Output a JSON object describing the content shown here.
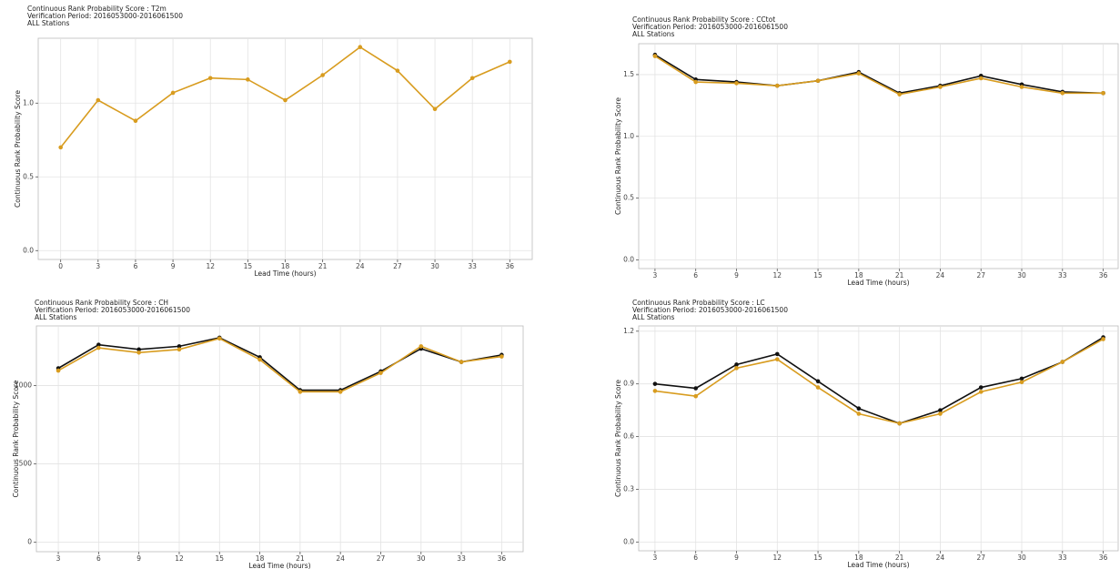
{
  "chart_data": [
    {
      "type": "line",
      "title_lines": [
        "Continuous Rank Probability Score : T2m",
        "Verification Period: 2016053000-2016061500",
        "ALL Stations"
      ],
      "xlabel": "Lead Time (hours)",
      "ylabel": "Continuous Rank Probability Score",
      "x": [
        0,
        3,
        6,
        9,
        12,
        15,
        18,
        21,
        24,
        27,
        30,
        33,
        36
      ],
      "xlim": [
        -1.8,
        37.8
      ],
      "xticks": [
        0,
        3,
        6,
        9,
        12,
        15,
        18,
        21,
        24,
        27,
        30,
        33,
        36
      ],
      "ylim": [
        -0.06,
        1.44
      ],
      "yticks": [
        {
          "value": 0,
          "label": "0.0"
        },
        {
          "value": 0.5,
          "label": "0.5"
        },
        {
          "value": 1,
          "label": "1.0"
        }
      ],
      "grid": true,
      "series": [
        {
          "color": "#d89c1f",
          "values": [
            0.7,
            1.02,
            0.88,
            1.07,
            1.17,
            1.16,
            1.02,
            1.19,
            1.38,
            1.22,
            0.96,
            1.17,
            1.28
          ]
        }
      ]
    },
    {
      "type": "line",
      "title_lines": [
        "Continuous Rank Probability Score : CCtot",
        "Verification Period: 2016053000-2016061500",
        "ALL Stations"
      ],
      "xlabel": "Lead Time (hours)",
      "ylabel": "Continuous Rank Probability Score",
      "x": [
        3,
        6,
        9,
        12,
        15,
        18,
        21,
        24,
        27,
        30,
        33,
        36
      ],
      "xlim": [
        1.8,
        37.1
      ],
      "xticks": [
        3,
        6,
        9,
        12,
        15,
        18,
        21,
        24,
        27,
        30,
        33,
        36
      ],
      "ylim": [
        -0.07,
        1.75
      ],
      "yticks": [
        {
          "value": 0,
          "label": "0.0"
        },
        {
          "value": 0.5,
          "label": "0.5"
        },
        {
          "value": 1,
          "label": "1.0"
        },
        {
          "value": 1.5,
          "label": "1.5"
        }
      ],
      "grid": true,
      "series": [
        {
          "color": "#111111",
          "values": [
            1.66,
            1.46,
            1.44,
            1.41,
            1.45,
            1.52,
            1.35,
            1.41,
            1.49,
            1.42,
            1.36,
            1.35
          ]
        },
        {
          "color": "#d89c1f",
          "values": [
            1.65,
            1.44,
            1.43,
            1.41,
            1.45,
            1.51,
            1.34,
            1.4,
            1.47,
            1.4,
            1.35,
            1.35
          ]
        }
      ]
    },
    {
      "type": "line",
      "title_lines": [
        "Continuous Rank Probability Score : CH",
        "Verification Period: 2016053000-2016061500",
        "ALL Stations"
      ],
      "xlabel": "Lead Time (hours)",
      "ylabel": "Continuous Rank Probability Score",
      "x": [
        3,
        6,
        9,
        12,
        15,
        18,
        21,
        24,
        27,
        30,
        33,
        36
      ],
      "xlim": [
        1.37,
        37.6
      ],
      "xticks": [
        3,
        6,
        9,
        12,
        15,
        18,
        21,
        24,
        27,
        30,
        33,
        36
      ],
      "ylim": [
        -60,
        1380
      ],
      "yticks": [
        0,
        500,
        1000
      ],
      "grid": true,
      "series": [
        {
          "color": "#111111",
          "values": [
            1110,
            1260,
            1230,
            1250,
            1305,
            1180,
            970,
            970,
            1090,
            1235,
            1150,
            1195
          ]
        },
        {
          "color": "#d89c1f",
          "values": [
            1095,
            1240,
            1210,
            1230,
            1300,
            1165,
            960,
            960,
            1080,
            1250,
            1150,
            1185
          ]
        }
      ]
    },
    {
      "type": "line",
      "title_lines": [
        "Continuous Rank Probability Score : LC",
        "Verification Period: 2016053000-2016061500",
        "ALL Stations"
      ],
      "xlabel": "Lead Time (hours)",
      "ylabel": "Continuous Rank Probability Score",
      "x": [
        3,
        6,
        9,
        12,
        15,
        18,
        21,
        24,
        27,
        30,
        33,
        36
      ],
      "xlim": [
        1.8,
        37.1
      ],
      "xticks": [
        3,
        6,
        9,
        12,
        15,
        18,
        21,
        24,
        27,
        30,
        33,
        36
      ],
      "ylim": [
        -0.05,
        1.23
      ],
      "yticks": [
        {
          "value": 0,
          "label": "0.0"
        },
        {
          "value": 0.3,
          "label": "0.3"
        },
        {
          "value": 0.6,
          "label": "0.6"
        },
        {
          "value": 0.9,
          "label": "0.9"
        },
        {
          "value": 1.2,
          "label": "1.2"
        }
      ],
      "grid": true,
      "series": [
        {
          "color": "#111111",
          "values": [
            0.9,
            0.875,
            1.01,
            1.07,
            0.915,
            0.76,
            0.675,
            0.75,
            0.88,
            0.93,
            1.025,
            1.165
          ]
        },
        {
          "color": "#d89c1f",
          "values": [
            0.86,
            0.83,
            0.99,
            1.04,
            0.88,
            0.73,
            0.675,
            0.73,
            0.855,
            0.91,
            1.025,
            1.155
          ]
        }
      ]
    }
  ]
}
